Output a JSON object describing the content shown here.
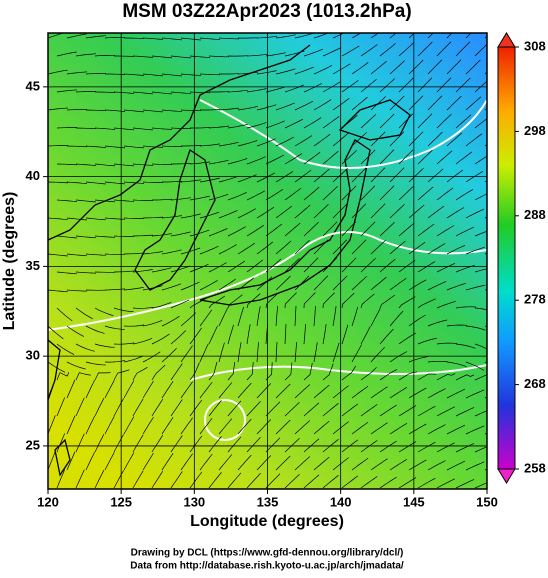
{
  "chart_data": {
    "type": "map",
    "title": "MSM 03Z22Apr2023 (1013.2hPa)",
    "x_label": "Longitude (degrees)",
    "y_label": "Latitude  (degrees)",
    "xlim": [
      120,
      150
    ],
    "xticks": [
      120,
      125,
      130,
      135,
      140,
      145,
      150
    ],
    "ylim": [
      22.6,
      48
    ],
    "yticks": [
      25,
      30,
      35,
      40,
      45
    ],
    "grid": true,
    "colorbar": {
      "lim": [
        258,
        308
      ],
      "ticks": [
        258,
        268,
        278,
        288,
        298,
        308
      ]
    },
    "credits": [
      "Drawing by DCL (https://www.gfd-dennou.org/library/dcl/)",
      "Data from http://database.rish.kyoto-u.ac.jp/arch/jmadata/"
    ]
  }
}
